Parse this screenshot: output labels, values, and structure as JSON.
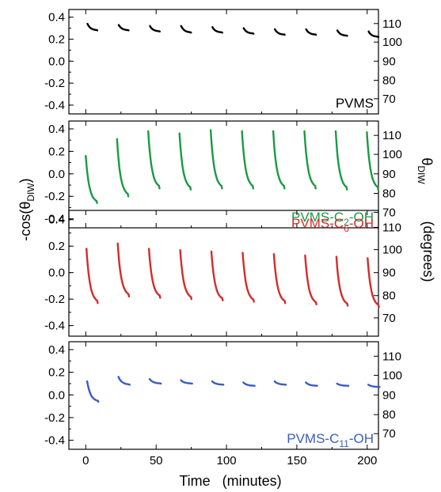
{
  "chart_data": {
    "type": "line",
    "xlabel": "Time   (minutes)",
    "ylabel_left": "-cos(θ",
    "ylabel_left_sub": "DIW",
    "ylabel_left_end": ")",
    "ylabel_right_symbol": "θ",
    "ylabel_right_sub": "DIW",
    "ylabel_right_unit": "(degrees)",
    "xlim": [
      -12,
      208
    ],
    "ylim": [
      -0.48,
      0.47
    ],
    "x_ticks": [
      0,
      50,
      100,
      150,
      200
    ],
    "y_ticks_left": [
      0.4,
      0.2,
      0.0,
      -0.2,
      -0.4
    ],
    "y_ticks_left_labels": [
      "0.4",
      "0.2",
      "0.0",
      "-0.2",
      "-0.4"
    ],
    "y_ticks_right": [
      110,
      100,
      90,
      80,
      70
    ],
    "cycle_period_minutes": 22.2,
    "panels": [
      {
        "label": "PVMS",
        "label_sub": "",
        "label_end": "",
        "label_pos": "bottom-right",
        "color": "#000000",
        "cycle_start_minutes": 1.2,
        "segments": [
          {
            "start": 0.34,
            "end": 0.28
          },
          {
            "start": 0.33,
            "end": 0.28
          },
          {
            "start": 0.32,
            "end": 0.27
          },
          {
            "start": 0.32,
            "end": 0.26
          },
          {
            "start": 0.31,
            "end": 0.26
          },
          {
            "start": 0.3,
            "end": 0.25
          },
          {
            "start": 0.29,
            "end": 0.24
          },
          {
            "start": 0.29,
            "end": 0.24
          },
          {
            "start": 0.28,
            "end": 0.23
          },
          {
            "start": 0.27,
            "end": 0.22
          }
        ],
        "segment_duration": 7
      },
      {
        "label": "PVMS-C",
        "label_sub": "2",
        "label_end": "-OH",
        "label_pos": "bottom-right",
        "color": "#1a9a44",
        "cycle_start_minutes": 0,
        "segments": [
          {
            "start": 0.16,
            "end": -0.26
          },
          {
            "start": 0.31,
            "end": -0.2
          },
          {
            "start": 0.38,
            "end": -0.13
          },
          {
            "start": 0.36,
            "end": -0.14
          },
          {
            "start": 0.39,
            "end": -0.13
          },
          {
            "start": 0.38,
            "end": -0.13
          },
          {
            "start": 0.38,
            "end": -0.13
          },
          {
            "start": 0.38,
            "end": -0.13
          },
          {
            "start": 0.38,
            "end": -0.14
          },
          {
            "start": 0.37,
            "end": -0.14
          }
        ],
        "segment_duration": 8
      },
      {
        "label": "PVMS-C",
        "label_sub": "6",
        "label_end": "-OH",
        "label_pos": "top-right",
        "color": "#d42b2b",
        "cycle_start_minutes": 0.5,
        "segments": [
          {
            "start": 0.18,
            "end": -0.23
          },
          {
            "start": 0.22,
            "end": -0.18
          },
          {
            "start": 0.18,
            "end": -0.19
          },
          {
            "start": 0.17,
            "end": -0.2
          },
          {
            "start": 0.16,
            "end": -0.21
          },
          {
            "start": 0.15,
            "end": -0.22
          },
          {
            "start": 0.14,
            "end": -0.23
          },
          {
            "start": 0.13,
            "end": -0.24
          },
          {
            "start": 0.12,
            "end": -0.25
          },
          {
            "start": 0.11,
            "end": -0.26
          }
        ],
        "segment_duration": 8
      },
      {
        "label": "PVMS-C",
        "label_sub": "11",
        "label_end": "-OH",
        "label_pos": "bottom-right",
        "color": "#3b5cc4",
        "cycle_start_minutes": 1,
        "segments": [
          {
            "start": 0.12,
            "end": -0.06
          },
          {
            "start": 0.16,
            "end": 0.09
          },
          {
            "start": 0.14,
            "end": 0.1
          },
          {
            "start": 0.13,
            "end": 0.1
          },
          {
            "start": 0.12,
            "end": 0.09
          },
          {
            "start": 0.11,
            "end": 0.08
          },
          {
            "start": 0.12,
            "end": 0.09
          },
          {
            "start": 0.11,
            "end": 0.08
          },
          {
            "start": 0.1,
            "end": 0.08
          },
          {
            "start": 0.09,
            "end": 0.07
          }
        ],
        "segment_duration": 8
      }
    ]
  }
}
